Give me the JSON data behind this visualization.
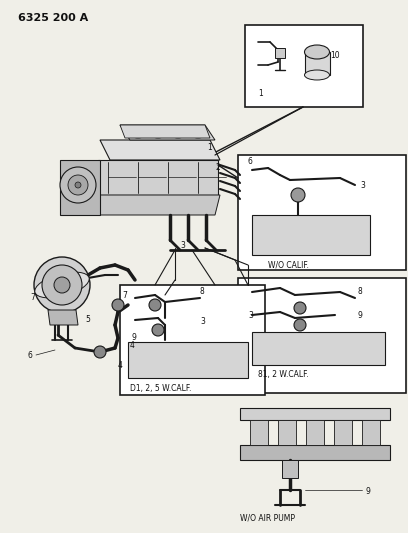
{
  "title": "6325 200 A",
  "bg_color": "#f0efe8",
  "line_color": "#1a1a1a",
  "text_color": "#111111",
  "fig_w": 4.08,
  "fig_h": 5.33,
  "dpi": 100,
  "labels": {
    "wo_calif": "W/O CALIF.",
    "b1_2_w_calif": "81, 2 W.CALF.",
    "d1_2_5_w_calif": "D1, 2, 5 W.CALF.",
    "wo_air_pump": "W/O AIR PUMP"
  }
}
